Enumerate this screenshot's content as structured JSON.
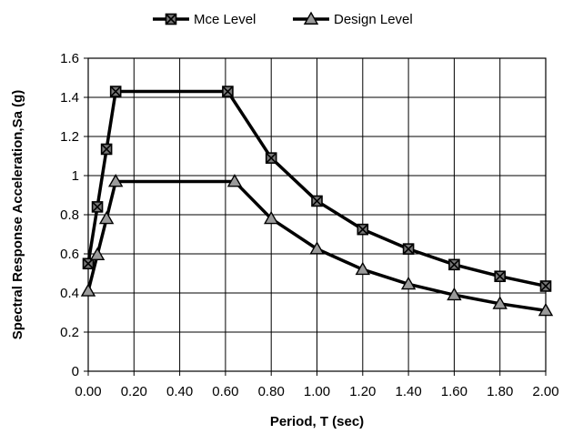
{
  "chart_data": {
    "type": "line",
    "xlabel": "Period, T (sec)",
    "ylabel": "Spectral Response Acceleration,Sa (g)",
    "xlim": [
      0,
      2
    ],
    "ylim": [
      0,
      1.6
    ],
    "x_ticks": [
      "0.00",
      "0.20",
      "0.40",
      "0.60",
      "0.80",
      "1.00",
      "1.20",
      "1.40",
      "1.60",
      "1.80",
      "2.00"
    ],
    "y_ticks": [
      "0",
      "0.2",
      "0.4",
      "0.6",
      "0.8",
      "1",
      "1.2",
      "1.4",
      "1.6"
    ],
    "grid": true,
    "legend_position": "top",
    "series": [
      {
        "name": "Mce Level",
        "marker": "boxed-x",
        "x": [
          0.0,
          0.04,
          0.08,
          0.12,
          0.61,
          0.8,
          1.0,
          1.2,
          1.4,
          1.6,
          1.8,
          2.0
        ],
        "y": [
          0.55,
          0.84,
          1.135,
          1.43,
          1.43,
          1.09,
          0.87,
          0.725,
          0.625,
          0.545,
          0.485,
          0.435
        ]
      },
      {
        "name": "Design Level",
        "marker": "triangle",
        "x": [
          0.0,
          0.04,
          0.08,
          0.12,
          0.64,
          0.8,
          1.0,
          1.2,
          1.4,
          1.6,
          1.8,
          2.0
        ],
        "y": [
          0.41,
          0.595,
          0.78,
          0.97,
          0.97,
          0.78,
          0.625,
          0.52,
          0.445,
          0.39,
          0.345,
          0.31
        ]
      }
    ]
  }
}
